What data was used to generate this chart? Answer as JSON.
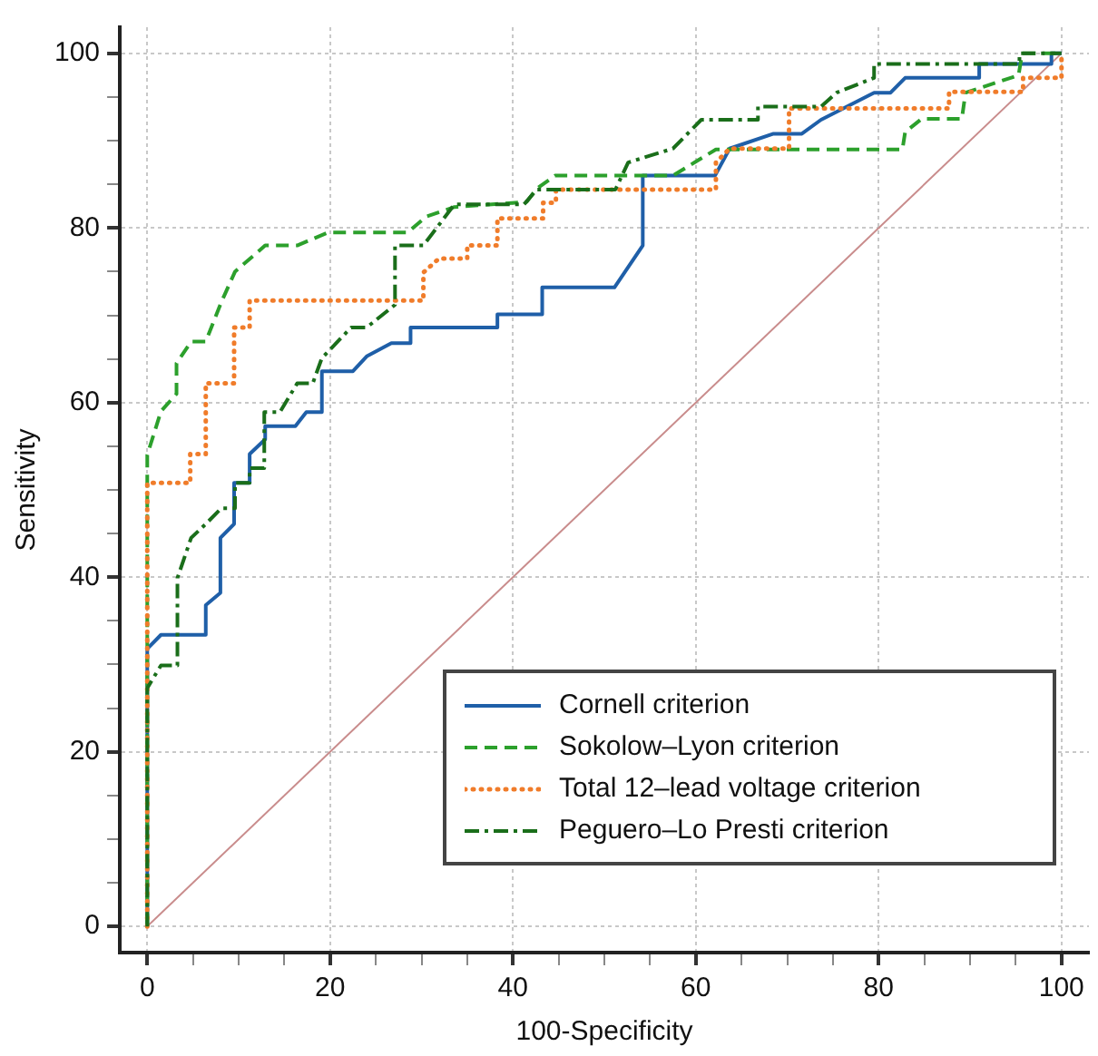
{
  "chart_data": {
    "type": "line",
    "xlabel": "100-Specificity",
    "ylabel": "Sensitivity",
    "xlim": [
      -3,
      103
    ],
    "ylim": [
      -3,
      103
    ],
    "xticks": [
      0,
      {
        "value": 5,
        "label": null
      },
      {
        "value": 10,
        "label": null
      },
      {
        "value": 15,
        "label": null
      },
      20,
      {
        "value": 25,
        "label": null
      },
      {
        "value": 30,
        "label": null
      },
      {
        "value": 35,
        "label": null
      },
      40,
      {
        "value": 45,
        "label": null
      },
      {
        "value": 50,
        "label": null
      },
      {
        "value": 55,
        "label": null
      },
      60,
      {
        "value": 65,
        "label": null
      },
      {
        "value": 70,
        "label": null
      },
      {
        "value": 75,
        "label": null
      },
      80,
      {
        "value": 85,
        "label": null
      },
      {
        "value": 90,
        "label": null
      },
      {
        "value": 95,
        "label": null
      },
      100
    ],
    "yticks": [
      0,
      {
        "value": 5,
        "label": null
      },
      {
        "value": 10,
        "label": null
      },
      {
        "value": 15,
        "label": null
      },
      20,
      {
        "value": 25,
        "label": null
      },
      {
        "value": 30,
        "label": null
      },
      {
        "value": 35,
        "label": null
      },
      40,
      {
        "value": 45,
        "label": null
      },
      {
        "value": 50,
        "label": null
      },
      {
        "value": 55,
        "label": null
      },
      60,
      {
        "value": 65,
        "label": null
      },
      {
        "value": 70,
        "label": null
      },
      {
        "value": 75,
        "label": null
      },
      80,
      {
        "value": 85,
        "label": null
      },
      {
        "value": 90,
        "label": null
      },
      {
        "value": 95,
        "label": null
      },
      100
    ],
    "grid": true,
    "legend": "bottom right",
    "marker": "none",
    "series": [
      {
        "name": "Cornell criterion",
        "color": "#1f5fa8",
        "line_style": "solid",
        "x": [
          0,
          0,
          1.5,
          6.4,
          6.4,
          8,
          8,
          9.5,
          9.5,
          11.2,
          11.2,
          12.9,
          12.9,
          16.2,
          17.4,
          19.1,
          19.1,
          22.5,
          24,
          26.7,
          28.8,
          28.8,
          38.3,
          38.3,
          43.2,
          43.2,
          51.1,
          54.2,
          54.2,
          62.1,
          63.7,
          68.5,
          71.6,
          73.7,
          79.5,
          81.3,
          82.9,
          91,
          91,
          98.9,
          98.9,
          100
        ],
        "values": [
          0,
          31.8,
          33.4,
          33.4,
          36.8,
          38.2,
          44.5,
          46.1,
          50.8,
          50.8,
          54.1,
          55.8,
          57.3,
          57.3,
          58.9,
          58.9,
          63.6,
          63.6,
          65.3,
          66.8,
          66.8,
          68.6,
          68.6,
          70.1,
          70.1,
          73.2,
          73.2,
          78,
          86,
          86,
          89.1,
          90.8,
          90.8,
          92.4,
          95.5,
          95.5,
          97.2,
          97.2,
          98.8,
          98.8,
          100,
          100
        ]
      },
      {
        "name": "Sokolow–Lyon criterion",
        "color": "#2ca02c",
        "line_style": "dashed",
        "x": [
          0,
          0,
          1.5,
          3.2,
          3.2,
          4.8,
          6.4,
          8.1,
          9.6,
          12.9,
          16.4,
          19.8,
          28.5,
          30.5,
          33.6,
          41.5,
          42.6,
          44.6,
          57.5,
          62.2,
          82.6,
          82.9,
          84.7,
          89.1,
          89.5,
          95.3,
          95.7,
          100
        ],
        "values": [
          0,
          54,
          59,
          61,
          64.5,
          67,
          67,
          71.5,
          75,
          78,
          78,
          79.5,
          79.5,
          81.3,
          82.4,
          83,
          84.5,
          86,
          86,
          89,
          89,
          91,
          92.5,
          92.5,
          95.5,
          97.5,
          100,
          100
        ]
      },
      {
        "name": "Total 12–lead voltage criterion",
        "color": "#f07c2a",
        "line_style": "dotted",
        "x": [
          0,
          0,
          4.7,
          4.7,
          6.4,
          6.4,
          9.5,
          9.5,
          11.2,
          11.2,
          30.2,
          30.2,
          31.9,
          35,
          35,
          38.3,
          38.3,
          43.3,
          43.3,
          44.7,
          44.7,
          62.2,
          62.2,
          63.7,
          70.2,
          70.2,
          87.7,
          87.7,
          95.8,
          95.8,
          100,
          100
        ],
        "values": [
          0,
          50.8,
          50.8,
          54.1,
          54.1,
          62.2,
          62.2,
          68.6,
          68.6,
          71.7,
          71.7,
          74.9,
          76.5,
          76.5,
          78,
          78,
          81.1,
          81.1,
          82.9,
          82.9,
          84.4,
          84.4,
          87.5,
          89.1,
          89.1,
          93.7,
          93.7,
          95.6,
          95.6,
          97.2,
          97.2,
          100
        ]
      },
      {
        "name": "Peguero–Lo Presti criterion",
        "color": "#1a6e1a",
        "line_style": "dashdot",
        "x": [
          0,
          0,
          1.5,
          3.3,
          3.3,
          4.8,
          6.4,
          8.1,
          9.6,
          9.6,
          11.2,
          11.2,
          12.8,
          12.8,
          14.5,
          16.4,
          18.1,
          19.1,
          22.3,
          24,
          27.1,
          27.1,
          30.2,
          33.6,
          41.2,
          42.6,
          51.2,
          52.6,
          57.5,
          60.6,
          66.8,
          66.8,
          73.7,
          75.4,
          79.5,
          79.5,
          95.4,
          95.4,
          100
        ],
        "values": [
          0,
          27.3,
          29.9,
          29.9,
          39.9,
          44.5,
          46.1,
          47.9,
          47.9,
          50.8,
          50.8,
          52.5,
          52.5,
          58.9,
          58.9,
          62.2,
          62.2,
          65.1,
          68.6,
          68.6,
          71.2,
          78,
          78,
          82.7,
          82.7,
          84.4,
          84.4,
          87.5,
          89.1,
          92.4,
          92.4,
          93.9,
          93.9,
          95.5,
          97.2,
          98.8,
          98.8,
          100,
          100
        ]
      },
      {
        "color": "#c98c8c",
        "line_style": "solid",
        "x": [
          0,
          100
        ],
        "values": [
          0,
          100
        ]
      }
    ]
  }
}
